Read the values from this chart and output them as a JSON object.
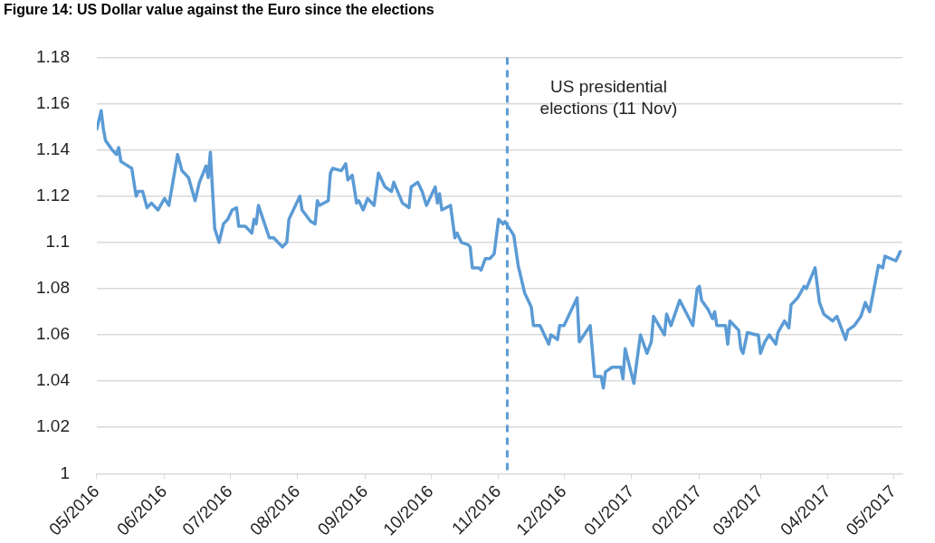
{
  "chart_data": {
    "type": "line",
    "title": "Figure 14: US Dollar value against the Euro since the elections",
    "x": [
      "2016-05-01",
      "2016-05-03",
      "2016-05-04",
      "2016-05-05",
      "2016-05-08",
      "2016-05-10",
      "2016-05-11",
      "2016-05-12",
      "2016-05-17",
      "2016-05-19",
      "2016-05-20",
      "2016-05-22",
      "2016-05-24",
      "2016-05-26",
      "2016-05-29",
      "2016-06-01",
      "2016-06-03",
      "2016-06-07",
      "2016-06-09",
      "2016-06-12",
      "2016-06-15",
      "2016-06-17",
      "2016-06-20",
      "2016-06-21",
      "2016-06-22",
      "2016-06-24",
      "2016-06-26",
      "2016-06-28",
      "2016-06-30",
      "2016-07-02",
      "2016-07-04",
      "2016-07-05",
      "2016-07-08",
      "2016-07-11",
      "2016-07-12",
      "2016-07-13",
      "2016-07-14",
      "2016-07-19",
      "2016-07-21",
      "2016-07-25",
      "2016-07-27",
      "2016-07-28",
      "2016-08-02",
      "2016-08-03",
      "2016-08-07",
      "2016-08-09",
      "2016-08-10",
      "2016-08-11",
      "2016-08-15",
      "2016-08-16",
      "2016-08-17",
      "2016-08-21",
      "2016-08-23",
      "2016-08-24",
      "2016-08-26",
      "2016-08-28",
      "2016-08-29",
      "2016-08-31",
      "2016-09-02",
      "2016-09-05",
      "2016-09-07",
      "2016-09-10",
      "2016-09-13",
      "2016-09-14",
      "2016-09-18",
      "2016-09-21",
      "2016-09-22",
      "2016-09-25",
      "2016-09-27",
      "2016-09-29",
      "2016-10-03",
      "2016-10-04",
      "2016-10-05",
      "2016-10-06",
      "2016-10-10",
      "2016-10-12",
      "2016-10-13",
      "2016-10-15",
      "2016-10-18",
      "2016-10-19",
      "2016-10-20",
      "2016-10-23",
      "2016-10-24",
      "2016-10-26",
      "2016-10-28",
      "2016-10-30",
      "2016-11-01",
      "2016-11-03",
      "2016-11-04",
      "2016-11-08",
      "2016-11-10",
      "2016-11-13",
      "2016-11-16",
      "2016-11-17",
      "2016-11-20",
      "2016-11-24",
      "2016-11-25",
      "2016-11-28",
      "2016-11-29",
      "2016-12-01",
      "2016-12-05",
      "2016-12-07",
      "2016-12-08",
      "2016-12-13",
      "2016-12-15",
      "2016-12-18",
      "2016-12-19",
      "2016-12-20",
      "2016-12-23",
      "2016-12-27",
      "2016-12-28",
      "2016-12-29",
      "2017-01-02",
      "2017-01-05",
      "2017-01-08",
      "2017-01-10",
      "2017-01-11",
      "2017-01-16",
      "2017-01-17",
      "2017-01-19",
      "2017-01-23",
      "2017-01-29",
      "2017-01-31",
      "2017-02-01",
      "2017-02-02",
      "2017-02-05",
      "2017-02-07",
      "2017-02-08",
      "2017-02-09",
      "2017-02-13",
      "2017-02-14",
      "2017-02-15",
      "2017-02-19",
      "2017-02-20",
      "2017-02-21",
      "2017-02-23",
      "2017-02-27",
      "2017-02-28",
      "2017-03-01",
      "2017-03-03",
      "2017-03-05",
      "2017-03-08",
      "2017-03-09",
      "2017-03-12",
      "2017-03-14",
      "2017-03-15",
      "2017-03-18",
      "2017-03-21",
      "2017-03-22",
      "2017-03-26",
      "2017-03-28",
      "2017-03-30",
      "2017-04-03",
      "2017-04-05",
      "2017-04-09",
      "2017-04-10",
      "2017-04-13",
      "2017-04-16",
      "2017-04-18",
      "2017-04-20",
      "2017-04-24",
      "2017-04-26",
      "2017-04-27",
      "2017-05-02",
      "2017-05-04"
    ],
    "series": [
      {
        "color": "#5b9bd5",
        "values": [
          1.149,
          1.157,
          1.149,
          1.144,
          1.14,
          1.138,
          1.141,
          1.135,
          1.132,
          1.12,
          1.122,
          1.122,
          1.115,
          1.117,
          1.114,
          1.119,
          1.116,
          1.138,
          1.131,
          1.128,
          1.118,
          1.126,
          1.133,
          1.128,
          1.139,
          1.106,
          1.1,
          1.108,
          1.11,
          1.114,
          1.115,
          1.107,
          1.107,
          1.104,
          1.11,
          1.108,
          1.116,
          1.102,
          1.102,
          1.098,
          1.1,
          1.11,
          1.12,
          1.114,
          1.109,
          1.108,
          1.118,
          1.116,
          1.118,
          1.13,
          1.132,
          1.131,
          1.134,
          1.127,
          1.129,
          1.117,
          1.118,
          1.114,
          1.119,
          1.116,
          1.13,
          1.124,
          1.122,
          1.126,
          1.117,
          1.115,
          1.124,
          1.126,
          1.122,
          1.116,
          1.124,
          1.117,
          1.121,
          1.114,
          1.116,
          1.102,
          1.104,
          1.1,
          1.099,
          1.098,
          1.089,
          1.089,
          1.088,
          1.093,
          1.093,
          1.095,
          1.11,
          1.108,
          1.109,
          1.103,
          1.09,
          1.078,
          1.072,
          1.064,
          1.064,
          1.056,
          1.06,
          1.058,
          1.064,
          1.064,
          1.072,
          1.076,
          1.057,
          1.064,
          1.042,
          1.042,
          1.037,
          1.044,
          1.046,
          1.046,
          1.041,
          1.054,
          1.039,
          1.06,
          1.052,
          1.057,
          1.068,
          1.06,
          1.069,
          1.064,
          1.075,
          1.064,
          1.08,
          1.081,
          1.075,
          1.071,
          1.067,
          1.07,
          1.064,
          1.064,
          1.056,
          1.066,
          1.062,
          1.054,
          1.052,
          1.061,
          1.06,
          1.06,
          1.052,
          1.057,
          1.06,
          1.056,
          1.061,
          1.066,
          1.063,
          1.073,
          1.076,
          1.081,
          1.08,
          1.089,
          1.074,
          1.069,
          1.066,
          1.068,
          1.058,
          1.062,
          1.064,
          1.068,
          1.074,
          1.07,
          1.09,
          1.089,
          1.094,
          1.092,
          1.096
        ]
      }
    ],
    "xlim": [
      "2016-05-01",
      "2017-05-05"
    ],
    "xticks": [
      {
        "value": "2016-05-01",
        "label": "05/2016"
      },
      {
        "value": "2016-06-01",
        "label": "06/2016"
      },
      {
        "value": "2016-07-01",
        "label": "07/2016"
      },
      {
        "value": "2016-08-01",
        "label": "08/2016"
      },
      {
        "value": "2016-09-01",
        "label": "09/2016"
      },
      {
        "value": "2016-10-01",
        "label": "10/2016"
      },
      {
        "value": "2016-11-01",
        "label": "11/2016"
      },
      {
        "value": "2016-12-01",
        "label": "12/2016"
      },
      {
        "value": "2017-01-01",
        "label": "01/2017"
      },
      {
        "value": "2017-02-01",
        "label": "02/2017"
      },
      {
        "value": "2017-03-01",
        "label": "03/2017"
      },
      {
        "value": "2017-04-01",
        "label": "04/2017"
      },
      {
        "value": "2017-05-01",
        "label": "05/2017"
      }
    ],
    "ylim": [
      1,
      1.18
    ],
    "yticks": [
      1,
      1.02,
      1.04,
      1.06,
      1.08,
      1.1,
      1.12,
      1.14,
      1.16,
      1.18
    ],
    "grid": "y",
    "legend": false,
    "marker": "none",
    "line_style": "solid",
    "ref_lines": [
      {
        "axis": "x",
        "value": "2016-11-05",
        "label": "US presidential elections (11 Nov)",
        "color": "#5b9bd5",
        "line_style": "dashed"
      }
    ]
  }
}
